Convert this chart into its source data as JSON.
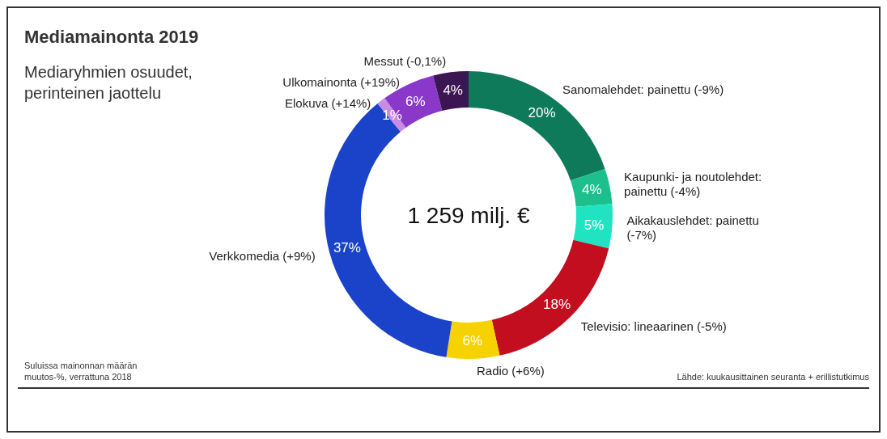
{
  "chart_data": {
    "type": "donut",
    "title": "Mediamainonta 2019",
    "subtitle": "Mediaryhmien osuudet, perinteinen jaottelu",
    "categories": [
      "Sanomalehdet: painettu (-9%)",
      "Kaupunki- ja noutolehdet: painettu (-4%)",
      "Aikakauslehdet: painettu (-7%)",
      "Televisio: lineaarinen (-5%)",
      "Radio (+6%)",
      "Verkkomedia (+9%)",
      "Elokuva (+14%)",
      "Ulkomainonta (+19%)",
      "Messut (-0,1%)"
    ],
    "values": [
      20,
      4,
      5,
      18,
      6,
      37,
      1,
      6,
      4
    ],
    "colors": [
      "#0e7a5a",
      "#1dbf8c",
      "#20e3c2",
      "#c20e1e",
      "#f6d200",
      "#1a43c9",
      "#c98be6",
      "#8a38c9",
      "#3b1652"
    ],
    "value_labels": [
      "20%",
      "4%",
      "5%",
      "18%",
      "6%",
      "37%",
      "1%",
      "6%",
      "4%"
    ],
    "annotations": [
      "1 259 milj. €",
      "Suluissa mainonnan määrän muutos-%, verrattuna 2018",
      "Lähde: kuukausittainen seuranta + erillistutkimus"
    ]
  }
}
